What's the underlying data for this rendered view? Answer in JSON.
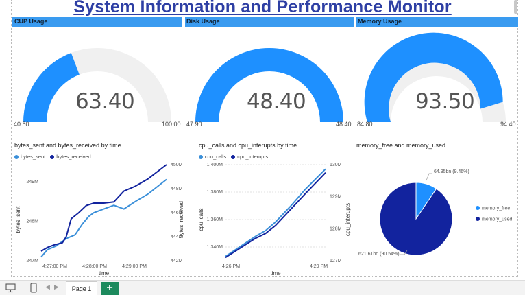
{
  "title": "System Information and Performance Monitor",
  "colors": {
    "accent": "#1e90ff",
    "dark": "#12239e",
    "header": "#3a9bf0",
    "gauge_bg": "#f0f0f0"
  },
  "gauges": [
    {
      "header": "CUP Usage",
      "value_label": "63.40",
      "min_label": "40.50",
      "max_label": "100.00",
      "value": 63.4,
      "min": 40.5,
      "max": 100
    },
    {
      "header": "Disk Usage",
      "value_label": "48.40",
      "min_label": "47.90",
      "max_label": "48.40",
      "value": 48.4,
      "min": 47.9,
      "max": 48.4
    },
    {
      "header": "Memory Usage",
      "value_label": "93.50",
      "min_label": "84.80",
      "max_label": "94.40",
      "value": 93.5,
      "min": 84.8,
      "max": 94.4
    }
  ],
  "chart_data": [
    {
      "type": "line",
      "title": "bytes_sent and bytes_received by time",
      "xlabel": "time",
      "ylabel": "bytes_sent",
      "y2label": "bytes_received",
      "x_ticks": [
        "4:27:00 PM",
        "4:28:00 PM",
        "4:29:00 PM"
      ],
      "y_ticks": [
        "247M",
        "248M",
        "249M"
      ],
      "y2_ticks": [
        "442M",
        "444M",
        "446M",
        "448M",
        "450M"
      ],
      "ylim": [
        247,
        249.6
      ],
      "y2lim": [
        442,
        450
      ],
      "series": [
        {
          "name": "bytes_sent",
          "axis": "left",
          "color": "#3a8fd9",
          "x": [
            0,
            0.05,
            0.12,
            0.2,
            0.27,
            0.33,
            0.38,
            0.42,
            0.5,
            0.58,
            0.66,
            0.75,
            0.85,
            1.0
          ],
          "y": [
            247.1,
            247.3,
            247.4,
            247.6,
            247.7,
            248.0,
            248.2,
            248.3,
            248.4,
            248.5,
            248.4,
            248.6,
            248.8,
            249.2
          ]
        },
        {
          "name": "bytes_received",
          "axis": "right",
          "color": "#12239e",
          "x": [
            0,
            0.05,
            0.1,
            0.17,
            0.2,
            0.24,
            0.3,
            0.36,
            0.42,
            0.5,
            0.58,
            0.66,
            0.75,
            0.85,
            1.0
          ],
          "y": [
            442.8,
            443.1,
            443.3,
            443.5,
            444.0,
            445.5,
            446.0,
            446.6,
            446.8,
            446.8,
            446.9,
            447.8,
            448.2,
            448.8,
            450.0
          ]
        }
      ]
    },
    {
      "type": "line",
      "title": "cpu_calls and cpu_interupts by time",
      "xlabel": "time",
      "ylabel": "cpu_calls",
      "y2label": "cpu_interupts",
      "x_ticks": [
        "4:26 PM",
        "4:29 PM"
      ],
      "y_ticks": [
        "1,340M",
        "1,360M",
        "1,380M",
        "1,400M"
      ],
      "y2_ticks": [
        "127M",
        "128M",
        "129M",
        "130M"
      ],
      "ylim": [
        1333,
        1400
      ],
      "y2lim": [
        127,
        130
      ],
      "series": [
        {
          "name": "cpu_calls",
          "axis": "left",
          "color": "#3a8fd9",
          "x": [
            0,
            0.15,
            0.3,
            0.4,
            0.5,
            0.65,
            0.8,
            1.0
          ],
          "y": [
            1336,
            1343,
            1350,
            1354,
            1360,
            1371,
            1383,
            1397
          ]
        },
        {
          "name": "cpu_interupts",
          "axis": "right",
          "color": "#12239e",
          "x": [
            0,
            0.15,
            0.3,
            0.4,
            0.5,
            0.65,
            0.8,
            1.0
          ],
          "y": [
            127.1,
            127.4,
            127.7,
            127.85,
            128.1,
            128.6,
            129.1,
            129.75
          ]
        }
      ]
    },
    {
      "type": "pie",
      "title": "memory_free and memory_used",
      "slices": [
        {
          "name": "memory_free",
          "value": 64.95,
          "label": "64.95bn (9.46%)",
          "color": "#1e90ff"
        },
        {
          "name": "memory_used",
          "value": 621.61,
          "label": "621.61bn (90.54%)",
          "color": "#12239e"
        }
      ]
    }
  ],
  "footer": {
    "page_tab": "Page 1",
    "add_label": "+"
  }
}
